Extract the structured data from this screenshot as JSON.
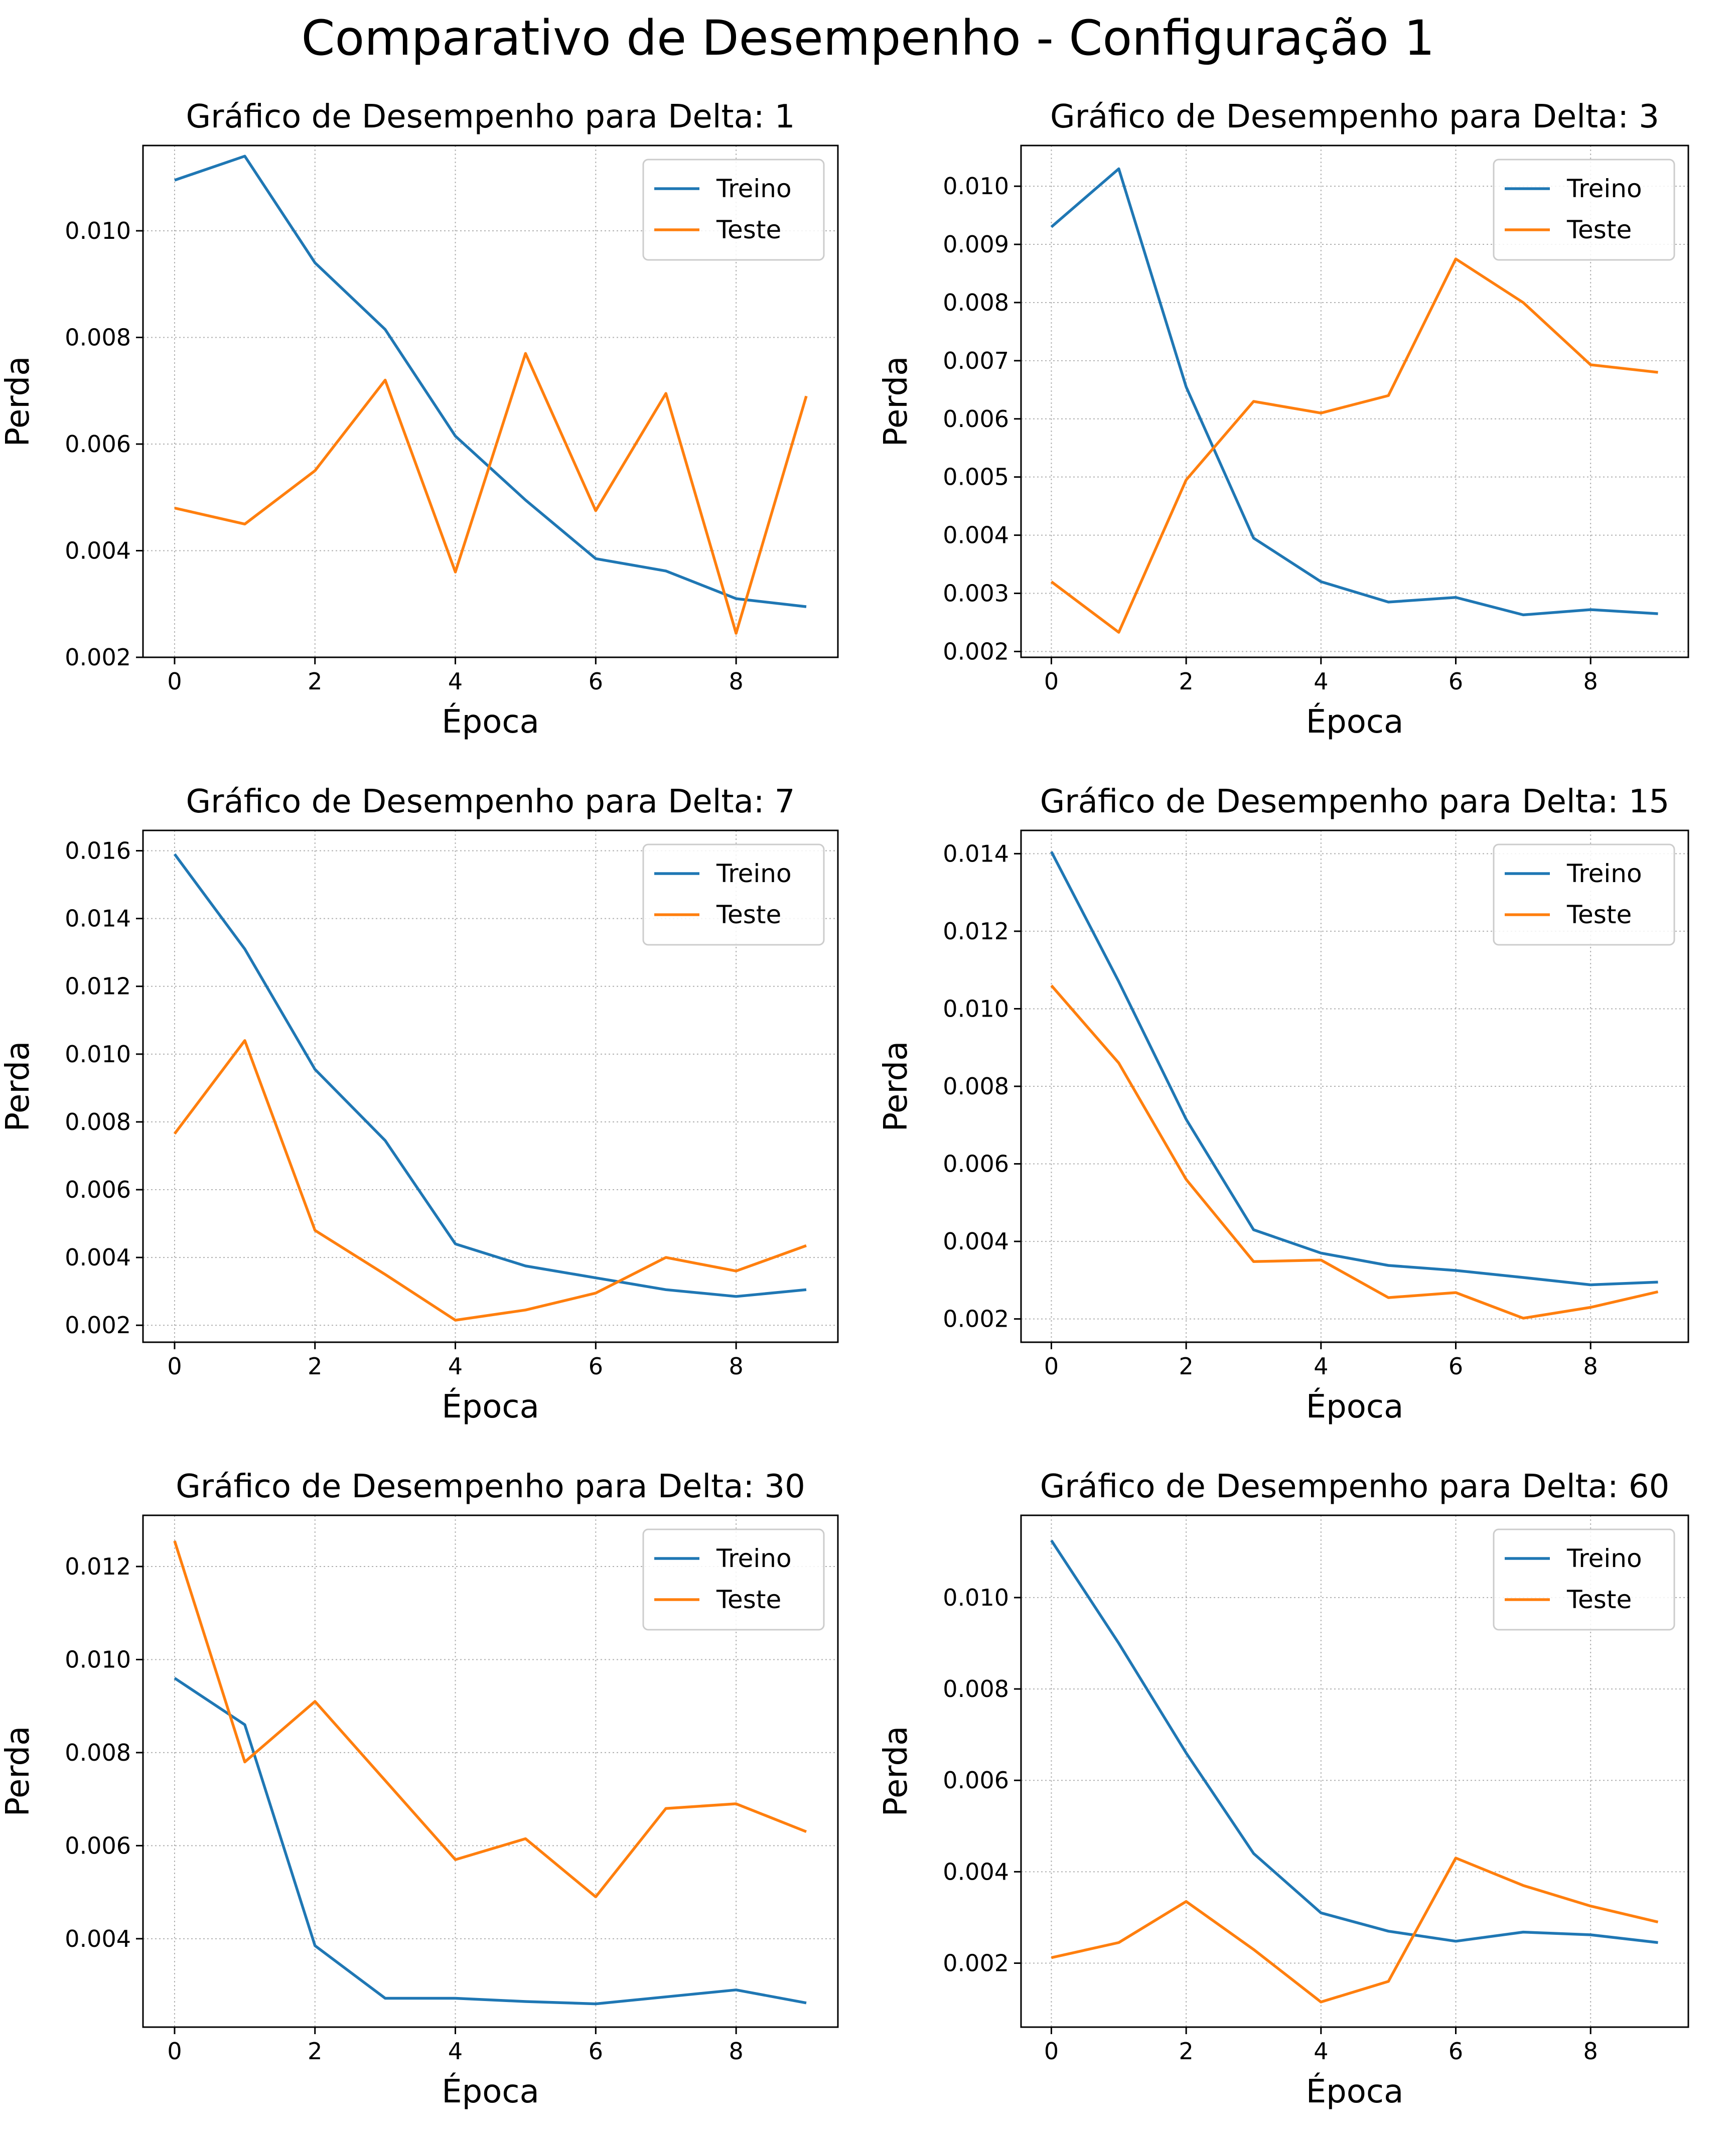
{
  "figure": {
    "title": "Comparativo de Desempenho - Configuração 1"
  },
  "colors": {
    "treino": "#1f77b4",
    "teste": "#ff7f0e",
    "grid": "#b0b0b0",
    "axis": "#000000"
  },
  "chart_data": [
    {
      "type": "line",
      "title": "Gráfico de Desempenho para Delta: 1",
      "xlabel": "Época",
      "ylabel": "Perda",
      "x": [
        0,
        1,
        2,
        3,
        4,
        5,
        6,
        7,
        8,
        9
      ],
      "xticks": [
        0,
        2,
        4,
        6,
        8
      ],
      "xlim": [
        -0.45,
        9.45
      ],
      "yticks": [
        0.002,
        0.004,
        0.006,
        0.008,
        0.01
      ],
      "ytick_labels": [
        "0.002",
        "0.004",
        "0.006",
        "0.008",
        "0.010"
      ],
      "ylim": [
        0.002,
        0.0116
      ],
      "grid": true,
      "legend": "upper right",
      "series": [
        {
          "name": "Treino",
          "values": [
            0.01095,
            0.0114,
            0.0094,
            0.00815,
            0.00615,
            0.00495,
            0.00385,
            0.00362,
            0.0031,
            0.00295
          ]
        },
        {
          "name": "Teste",
          "values": [
            0.0048,
            0.0045,
            0.0055,
            0.0072,
            0.0036,
            0.0077,
            0.00475,
            0.00695,
            0.00245,
            0.0069
          ]
        }
      ]
    },
    {
      "type": "line",
      "title": "Gráfico de Desempenho para Delta: 3",
      "xlabel": "Época",
      "ylabel": "Perda",
      "x": [
        0,
        1,
        2,
        3,
        4,
        5,
        6,
        7,
        8,
        9
      ],
      "xticks": [
        0,
        2,
        4,
        6,
        8
      ],
      "xlim": [
        -0.45,
        9.45
      ],
      "yticks": [
        0.002,
        0.003,
        0.004,
        0.005,
        0.006,
        0.007,
        0.008,
        0.009,
        0.01
      ],
      "ytick_labels": [
        "0.002",
        "0.003",
        "0.004",
        "0.005",
        "0.006",
        "0.007",
        "0.008",
        "0.009",
        "0.010"
      ],
      "ylim": [
        0.0019,
        0.0107
      ],
      "grid": true,
      "legend": "upper right",
      "series": [
        {
          "name": "Treino",
          "values": [
            0.0093,
            0.0103,
            0.00655,
            0.00395,
            0.0032,
            0.00285,
            0.00293,
            0.00263,
            0.00272,
            0.00265
          ]
        },
        {
          "name": "Teste",
          "values": [
            0.0032,
            0.00233,
            0.00495,
            0.0063,
            0.0061,
            0.0064,
            0.00875,
            0.008,
            0.00693,
            0.0068
          ]
        }
      ]
    },
    {
      "type": "line",
      "title": "Gráfico de Desempenho para Delta: 7",
      "xlabel": "Época",
      "ylabel": "Perda",
      "x": [
        0,
        1,
        2,
        3,
        4,
        5,
        6,
        7,
        8,
        9
      ],
      "xticks": [
        0,
        2,
        4,
        6,
        8
      ],
      "xlim": [
        -0.45,
        9.45
      ],
      "yticks": [
        0.002,
        0.004,
        0.006,
        0.008,
        0.01,
        0.012,
        0.014,
        0.016
      ],
      "ytick_labels": [
        "0.002",
        "0.004",
        "0.006",
        "0.008",
        "0.010",
        "0.012",
        "0.014",
        "0.016"
      ],
      "ylim": [
        0.0015,
        0.0166
      ],
      "grid": true,
      "legend": "upper right",
      "series": [
        {
          "name": "Treino",
          "values": [
            0.0159,
            0.0131,
            0.00955,
            0.00745,
            0.0044,
            0.00375,
            0.0034,
            0.00305,
            0.00285,
            0.00305
          ]
        },
        {
          "name": "Teste",
          "values": [
            0.00765,
            0.0104,
            0.0048,
            0.0035,
            0.00215,
            0.00245,
            0.00295,
            0.004,
            0.0036,
            0.00435
          ]
        }
      ]
    },
    {
      "type": "line",
      "title": "Gráfico de Desempenho para Delta: 15",
      "xlabel": "Época",
      "ylabel": "Perda",
      "x": [
        0,
        1,
        2,
        3,
        4,
        5,
        6,
        7,
        8,
        9
      ],
      "xticks": [
        0,
        2,
        4,
        6,
        8
      ],
      "xlim": [
        -0.45,
        9.45
      ],
      "yticks": [
        0.002,
        0.004,
        0.006,
        0.008,
        0.01,
        0.012,
        0.014
      ],
      "ytick_labels": [
        "0.002",
        "0.004",
        "0.006",
        "0.008",
        "0.010",
        "0.012",
        "0.014"
      ],
      "ylim": [
        0.0014,
        0.0146
      ],
      "grid": true,
      "legend": "upper right",
      "series": [
        {
          "name": "Treino",
          "values": [
            0.01405,
            0.0107,
            0.00715,
            0.0043,
            0.0037,
            0.00338,
            0.00325,
            0.00307,
            0.00288,
            0.00295
          ]
        },
        {
          "name": "Teste",
          "values": [
            0.0106,
            0.0086,
            0.0056,
            0.00348,
            0.00352,
            0.00255,
            0.00268,
            0.00202,
            0.0023,
            0.0027
          ]
        }
      ]
    },
    {
      "type": "line",
      "title": "Gráfico de Desempenho para Delta: 30",
      "xlabel": "Época",
      "ylabel": "Perda",
      "x": [
        0,
        1,
        2,
        3,
        4,
        5,
        6,
        7,
        8,
        9
      ],
      "xticks": [
        0,
        2,
        4,
        6,
        8
      ],
      "xlim": [
        -0.45,
        9.45
      ],
      "yticks": [
        0.004,
        0.006,
        0.008,
        0.01,
        0.012
      ],
      "ytick_labels": [
        "0.004",
        "0.006",
        "0.008",
        "0.010",
        "0.012"
      ],
      "ylim": [
        0.0021,
        0.0131
      ],
      "grid": true,
      "legend": "upper right",
      "series": [
        {
          "name": "Treino",
          "values": [
            0.0096,
            0.0086,
            0.00385,
            0.00272,
            0.00272,
            0.00265,
            0.0026,
            0.00275,
            0.0029,
            0.00262
          ]
        },
        {
          "name": "Teste",
          "values": [
            0.01255,
            0.0078,
            0.0091,
            0.0074,
            0.0057,
            0.00615,
            0.0049,
            0.0068,
            0.0069,
            0.0063
          ]
        }
      ]
    },
    {
      "type": "line",
      "title": "Gráfico de Desempenho para Delta: 60",
      "xlabel": "Época",
      "ylabel": "Perda",
      "x": [
        0,
        1,
        2,
        3,
        4,
        5,
        6,
        7,
        8,
        9
      ],
      "xticks": [
        0,
        2,
        4,
        6,
        8
      ],
      "xlim": [
        -0.45,
        9.45
      ],
      "yticks": [
        0.002,
        0.004,
        0.006,
        0.008,
        0.01
      ],
      "ytick_labels": [
        "0.002",
        "0.004",
        "0.006",
        "0.008",
        "0.010"
      ],
      "ylim": [
        0.0006,
        0.0118
      ],
      "grid": true,
      "legend": "upper right",
      "series": [
        {
          "name": "Treino",
          "values": [
            0.01125,
            0.009,
            0.0066,
            0.0044,
            0.0031,
            0.0027,
            0.00248,
            0.00268,
            0.00262,
            0.00245
          ]
        },
        {
          "name": "Teste",
          "values": [
            0.00212,
            0.00245,
            0.00335,
            0.0023,
            0.00115,
            0.0016,
            0.0043,
            0.0037,
            0.00325,
            0.0029
          ]
        }
      ]
    }
  ]
}
